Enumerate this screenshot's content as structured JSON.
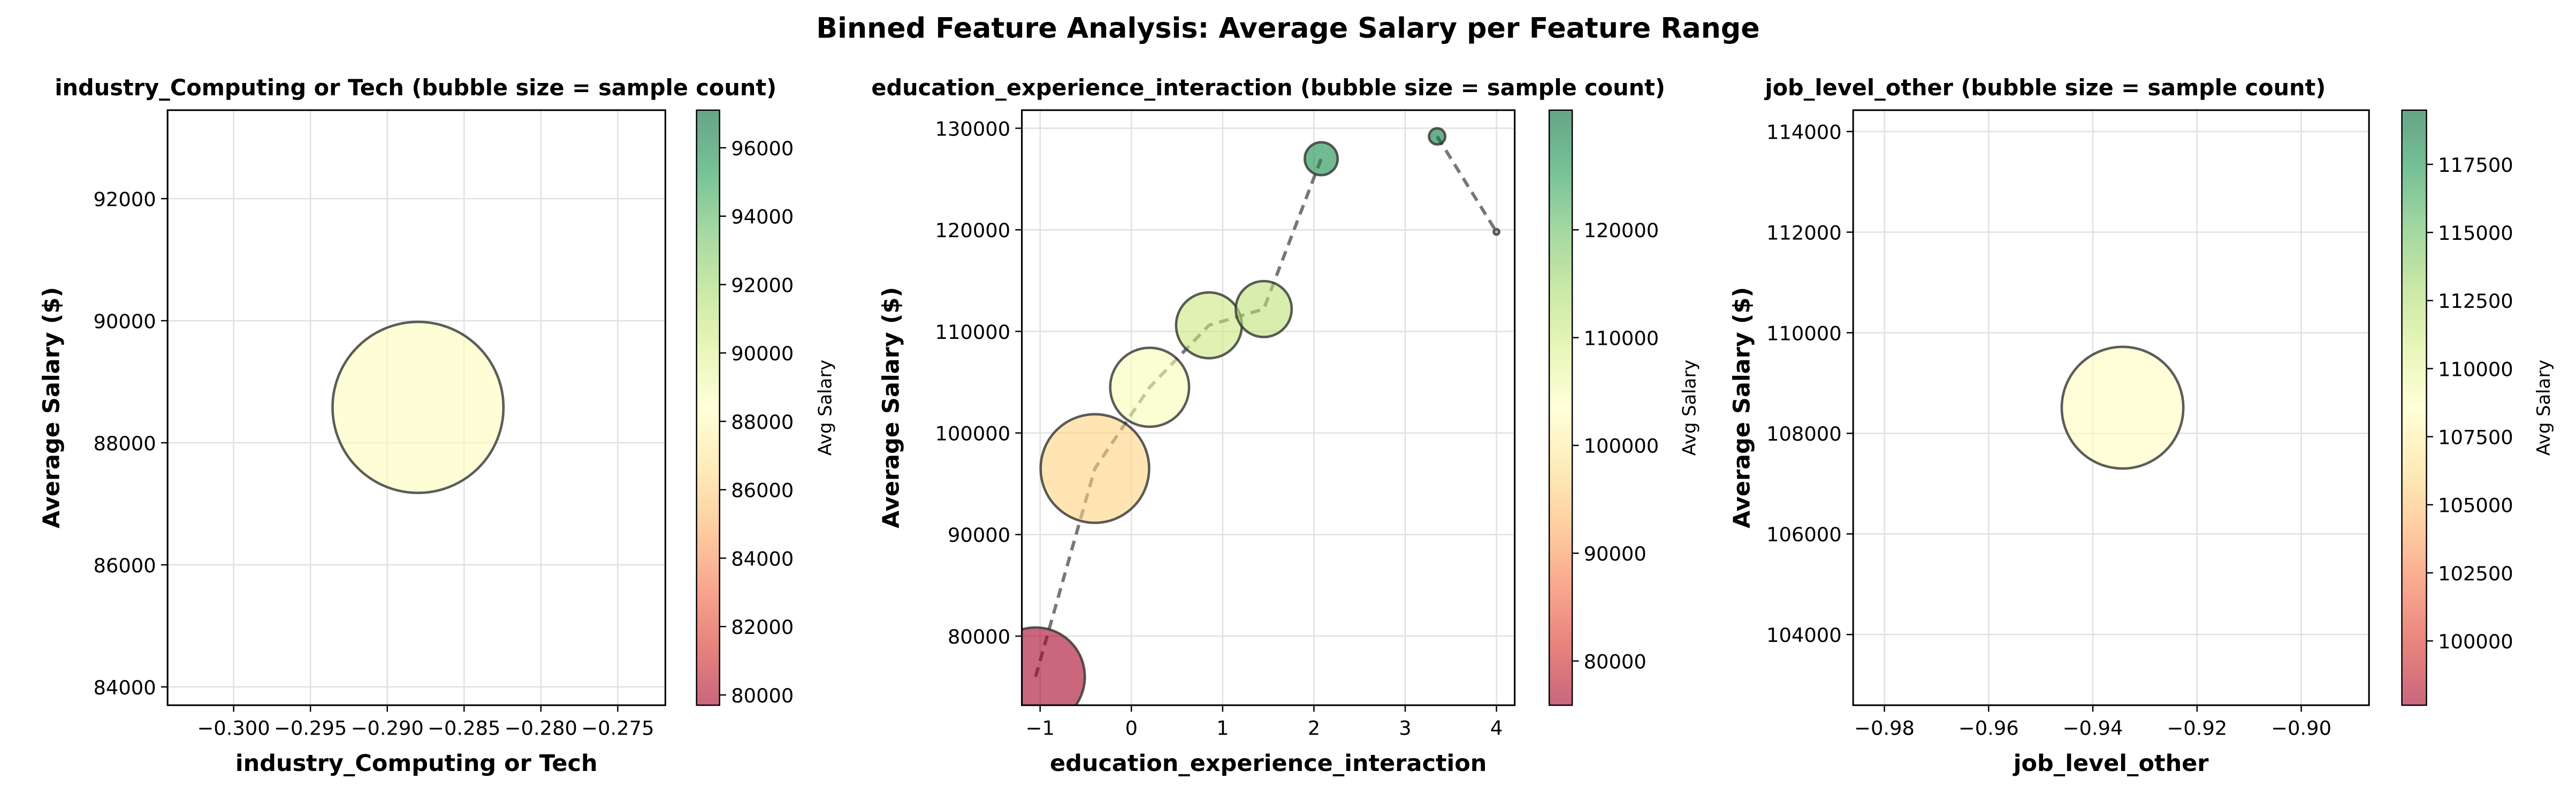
{
  "title": "Binned Feature Analysis: Average Salary per Feature Range",
  "chart_data": [
    {
      "type": "bubble",
      "title": "industry_Computing or Tech (bubble size = sample count)",
      "xlabel": "industry_Computing or Tech",
      "ylabel": "Average Salary ($)",
      "x": [
        -0.288
      ],
      "values": [
        88580
      ],
      "sizes": [
        1000
      ],
      "xlim": [
        -0.3043,
        -0.2719
      ],
      "ylim": [
        83700,
        93450
      ],
      "xticks": [
        {
          "value": -0.3,
          "label": "−0.300"
        },
        {
          "value": -0.295,
          "label": "−0.295"
        },
        {
          "value": -0.29,
          "label": "−0.290"
        },
        {
          "value": -0.285,
          "label": "−0.285"
        },
        {
          "value": -0.28,
          "label": "−0.280"
        },
        {
          "value": -0.275,
          "label": "−0.275"
        }
      ],
      "yticks": [
        84000,
        86000,
        88000,
        90000,
        92000
      ],
      "grid": true,
      "trend_line": false,
      "colorbar": {
        "label": "Avg Salary",
        "lim": [
          79700,
          97100
        ],
        "ticks": [
          80000,
          82000,
          84000,
          86000,
          88000,
          90000,
          92000,
          94000,
          96000
        ]
      },
      "colormap": [
        "#a50026",
        "#d73027",
        "#f46d43",
        "#fdae61",
        "#fee08b",
        "#ffffbf",
        "#d9ef8b",
        "#a6d96a",
        "#66bd63",
        "#1a9850",
        "#006837"
      ]
    },
    {
      "type": "bubble",
      "title": "education_experience_interaction (bubble size = sample count)",
      "xlabel": "education_experience_interaction",
      "ylabel": "Average Salary ($)",
      "x": [
        -1.05,
        -0.4,
        0.2,
        0.85,
        1.45,
        2.08,
        2.72,
        3.35,
        4.0
      ],
      "values": [
        76000,
        96500,
        104500,
        110600,
        112200,
        127000,
        null,
        129200,
        119800
      ],
      "sizes": [
        333,
        403,
        213,
        148,
        107,
        37,
        null,
        9,
        1
      ],
      "xlim": [
        -1.2,
        4.2
      ],
      "ylim": [
        73200,
        131780
      ],
      "xticks": [
        {
          "value": -1,
          "label": "−1"
        },
        0,
        1,
        2,
        3,
        4
      ],
      "yticks": [
        80000,
        90000,
        100000,
        110000,
        120000,
        130000
      ],
      "grid": true,
      "trend_line": true,
      "colorbar": {
        "label": "Avg Salary",
        "lim": [
          75900,
          131100
        ],
        "ticks": [
          80000,
          90000,
          100000,
          110000,
          120000
        ]
      },
      "colormap": [
        "#a50026",
        "#d73027",
        "#f46d43",
        "#fdae61",
        "#fee08b",
        "#ffffbf",
        "#d9ef8b",
        "#a6d96a",
        "#66bd63",
        "#1a9850",
        "#006837"
      ]
    },
    {
      "type": "bubble",
      "title": "job_level_other (bubble size = sample count)",
      "xlabel": "job_level_other",
      "ylabel": "Average Salary ($)",
      "x": [
        -0.9343
      ],
      "values": [
        108510
      ],
      "sizes": [
        506
      ],
      "xlim": [
        -0.986,
        -0.887
      ],
      "ylim": [
        102595,
        114425
      ],
      "xticks": [
        {
          "value": -0.98,
          "label": "−0.98"
        },
        {
          "value": -0.96,
          "label": "−0.96"
        },
        {
          "value": -0.94,
          "label": "−0.94"
        },
        {
          "value": -0.92,
          "label": "−0.92"
        },
        {
          "value": -0.9,
          "label": "−0.90"
        }
      ],
      "yticks": [
        104000,
        106000,
        108000,
        110000,
        112000,
        114000
      ],
      "grid": true,
      "trend_line": false,
      "colorbar": {
        "label": "Avg Salary",
        "lim": [
          97640,
          119490
        ],
        "ticks": [
          100000,
          102500,
          105000,
          107500,
          110000,
          112500,
          115000,
          117500
        ]
      },
      "colormap": [
        "#a50026",
        "#d73027",
        "#f46d43",
        "#fdae61",
        "#fee08b",
        "#ffffbf",
        "#d9ef8b",
        "#a6d96a",
        "#66bd63",
        "#1a9850",
        "#006837"
      ]
    }
  ]
}
